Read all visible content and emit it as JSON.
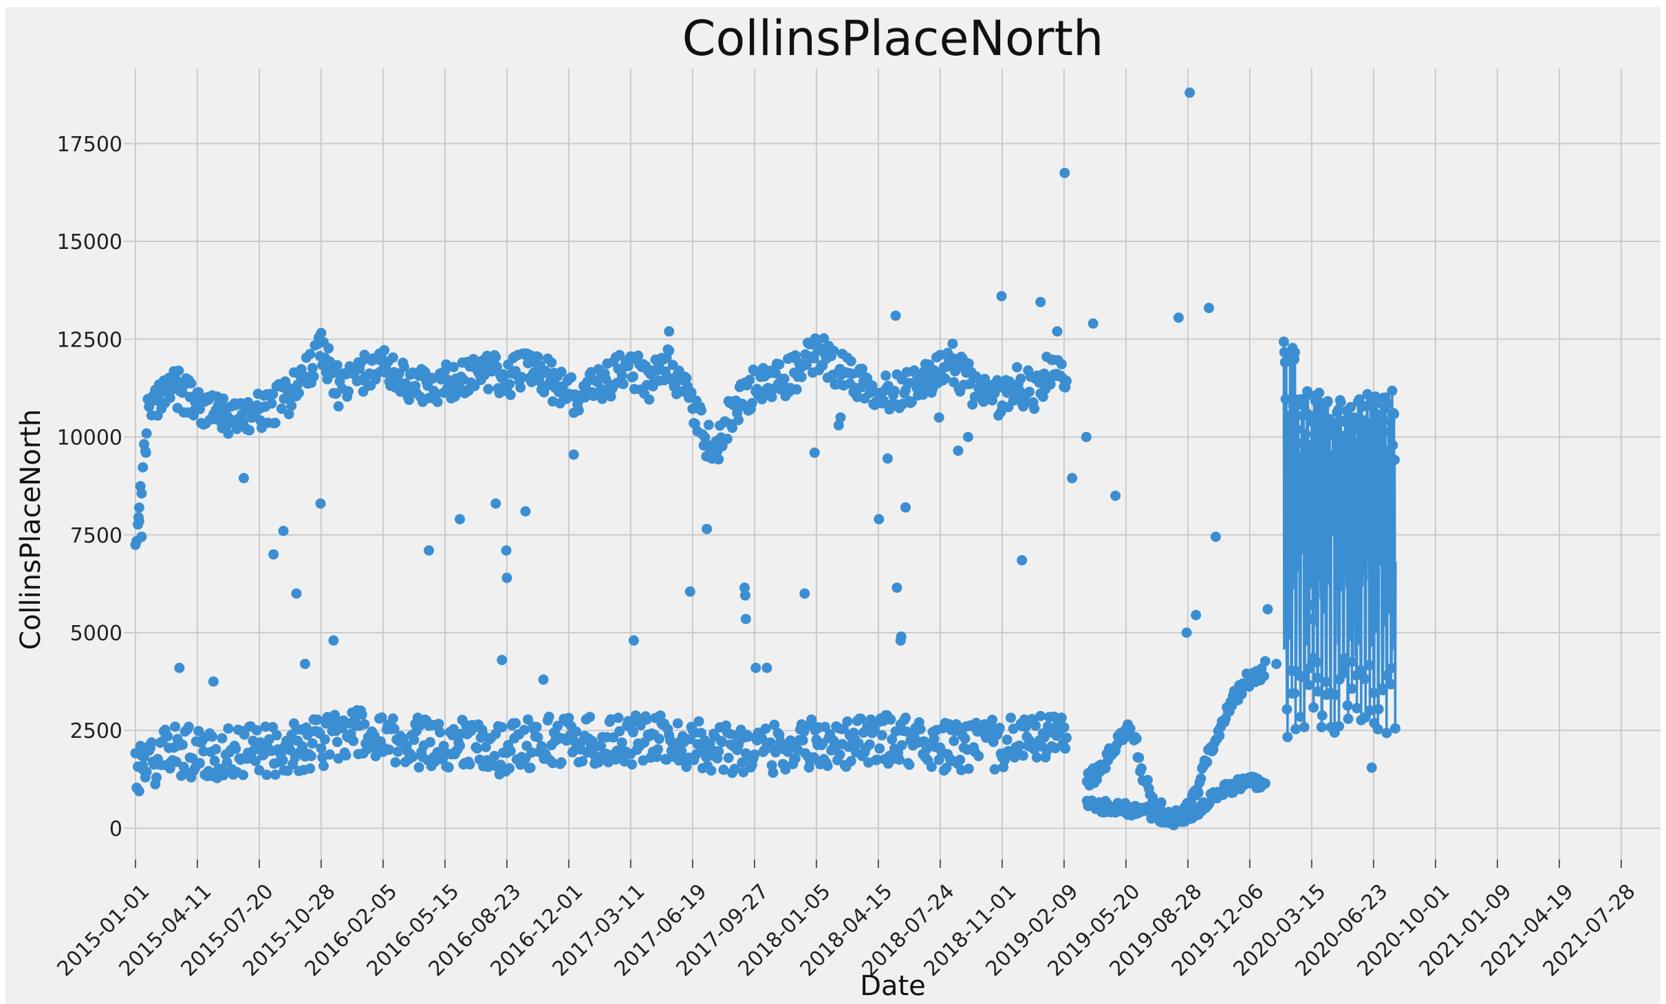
{
  "chart_data": {
    "type": "scatter",
    "title": "CollinsPlaceNorth",
    "xlabel": "Date",
    "ylabel": "CollinsPlaceNorth",
    "xlim": [
      "2014-11-21",
      "2021-09-25"
    ],
    "ylim": [
      -800,
      19500
    ],
    "grid": true,
    "background": "#f0f0f0",
    "marker_color": "#3b8ed2",
    "x_ticks": [
      "2015-01-01",
      "2015-04-11",
      "2015-07-20",
      "2015-10-28",
      "2016-02-05",
      "2016-05-15",
      "2016-08-23",
      "2016-12-01",
      "2017-03-11",
      "2017-06-19",
      "2017-09-27",
      "2018-01-05",
      "2018-04-15",
      "2018-07-24",
      "2018-11-01",
      "2019-02-09",
      "2019-05-20",
      "2019-08-28",
      "2019-12-06",
      "2020-03-15",
      "2020-06-23",
      "2020-10-01",
      "2021-01-09",
      "2021-04-19",
      "2021-07-28"
    ],
    "y_ticks": [
      0,
      2500,
      5000,
      7500,
      10000,
      12500,
      15000,
      17500
    ],
    "x_start": "2015-01-01",
    "segments": [
      {
        "name": "weekday",
        "points": [
          [
            0,
            7500
          ],
          [
            20,
            10500
          ],
          [
            60,
            11300
          ],
          [
            90,
            11000
          ],
          [
            120,
            10600
          ],
          [
            170,
            10500
          ],
          [
            220,
            10800
          ],
          [
            260,
            11200
          ],
          [
            300,
            12300
          ],
          [
            330,
            11200
          ],
          [
            365,
            11600
          ],
          [
            400,
            11800
          ],
          [
            440,
            11400
          ],
          [
            480,
            11300
          ],
          [
            520,
            11500
          ],
          [
            560,
            11700
          ],
          [
            600,
            11500
          ],
          [
            640,
            11900
          ],
          [
            680,
            11300
          ],
          [
            720,
            11000
          ],
          [
            760,
            11400
          ],
          [
            800,
            11800
          ],
          [
            830,
            11300
          ],
          [
            860,
            12000
          ],
          [
            890,
            11100
          ],
          [
            920,
            10000
          ],
          [
            940,
            9600
          ],
          [
            960,
            10600
          ],
          [
            1000,
            11300
          ],
          [
            1040,
            11400
          ],
          [
            1080,
            11800
          ],
          [
            1100,
            12200
          ],
          [
            1140,
            11700
          ],
          [
            1180,
            11400
          ],
          [
            1220,
            11100
          ],
          [
            1260,
            11400
          ],
          [
            1300,
            11600
          ],
          [
            1320,
            11900
          ],
          [
            1340,
            11500
          ],
          [
            1380,
            10900
          ],
          [
            1420,
            11300
          ],
          [
            1460,
            11200
          ],
          [
            1470,
            11600
          ],
          [
            1505,
            11400
          ]
        ],
        "spread": 500
      },
      {
        "name": "weekend",
        "points": [
          [
            0,
            1500
          ],
          [
            60,
            2000
          ],
          [
            120,
            1900
          ],
          [
            180,
            2000
          ],
          [
            240,
            2000
          ],
          [
            300,
            2200
          ],
          [
            340,
            2500
          ],
          [
            400,
            2200
          ],
          [
            460,
            2200
          ],
          [
            520,
            2200
          ],
          [
            580,
            2000
          ],
          [
            640,
            2200
          ],
          [
            700,
            2300
          ],
          [
            760,
            2200
          ],
          [
            820,
            2300
          ],
          [
            880,
            2200
          ],
          [
            940,
            2100
          ],
          [
            1000,
            2000
          ],
          [
            1060,
            2100
          ],
          [
            1120,
            2200
          ],
          [
            1180,
            2200
          ],
          [
            1240,
            2300
          ],
          [
            1300,
            2100
          ],
          [
            1360,
            2100
          ],
          [
            1420,
            2200
          ],
          [
            1480,
            2400
          ],
          [
            1505,
            2300
          ]
        ],
        "spread": 650
      },
      {
        "name": "covid-weekday",
        "points": [
          [
            1537,
            1200
          ],
          [
            1560,
            1500
          ],
          [
            1580,
            2000
          ],
          [
            1600,
            2500
          ],
          [
            1615,
            2300
          ],
          [
            1625,
            1500
          ],
          [
            1645,
            600
          ],
          [
            1660,
            400
          ],
          [
            1670,
            300
          ],
          [
            1680,
            250
          ],
          [
            1700,
            450
          ],
          [
            1720,
            1200
          ],
          [
            1740,
            2200
          ],
          [
            1755,
            2600
          ],
          [
            1770,
            3200
          ],
          [
            1790,
            3700
          ],
          [
            1800,
            3800
          ],
          [
            1810,
            3900
          ],
          [
            1825,
            4100
          ]
        ],
        "spread": 220
      },
      {
        "name": "covid-weekend",
        "points": [
          [
            1537,
            650
          ],
          [
            1560,
            550
          ],
          [
            1580,
            550
          ],
          [
            1600,
            500
          ],
          [
            1620,
            450
          ],
          [
            1640,
            380
          ],
          [
            1660,
            250
          ],
          [
            1680,
            200
          ],
          [
            1700,
            300
          ],
          [
            1720,
            500
          ],
          [
            1740,
            800
          ],
          [
            1760,
            1000
          ],
          [
            1780,
            1100
          ],
          [
            1800,
            1200
          ],
          [
            1825,
            1050
          ]
        ],
        "spread": 150
      }
    ],
    "outliers": [
      [
        1703,
        18800
      ],
      [
        1501,
        16750
      ],
      [
        1399,
        13600
      ],
      [
        1462,
        13450
      ],
      [
        1734,
        13300
      ],
      [
        1547,
        12900
      ],
      [
        1685,
        13050
      ],
      [
        1228,
        13100
      ],
      [
        862,
        12700
      ],
      [
        805,
        4800
      ],
      [
        1081,
        6000
      ],
      [
        1230,
        6150
      ],
      [
        1432,
        6850
      ],
      [
        1513,
        8950
      ],
      [
        1698,
        5000
      ],
      [
        1713,
        5450
      ],
      [
        1745,
        7450
      ],
      [
        1829,
        5600
      ],
      [
        1843,
        4200
      ],
      [
        1872,
        3450
      ],
      [
        1898,
        8200
      ],
      [
        1899,
        5700
      ],
      [
        1900,
        5350
      ],
      [
        1901,
        4250
      ],
      [
        1902,
        6550
      ],
      [
        1890,
        8950
      ],
      [
        1908,
        4250
      ],
      [
        1953,
        4350
      ],
      [
        1997,
        1550
      ],
      [
        12,
        1600
      ],
      [
        10,
        7450
      ],
      [
        6,
        7850
      ],
      [
        5,
        7950
      ],
      [
        17,
        9600
      ],
      [
        71,
        4100
      ],
      [
        126,
        3750
      ],
      [
        175,
        8950
      ],
      [
        223,
        7000
      ],
      [
        239,
        7600
      ],
      [
        260,
        6000
      ],
      [
        274,
        4200
      ],
      [
        299,
        8300
      ],
      [
        320,
        4800
      ],
      [
        474,
        7100
      ],
      [
        524,
        7900
      ],
      [
        582,
        8300
      ],
      [
        592,
        4300
      ],
      [
        599,
        7100
      ],
      [
        600,
        6400
      ],
      [
        630,
        8100
      ],
      [
        659,
        3800
      ],
      [
        708,
        9550
      ],
      [
        896,
        6050
      ],
      [
        923,
        7650
      ],
      [
        984,
        6150
      ],
      [
        985,
        5950
      ],
      [
        986,
        5350
      ],
      [
        1002,
        4100
      ],
      [
        1020,
        4100
      ],
      [
        1097,
        9600
      ],
      [
        1136,
        10300
      ],
      [
        1139,
        10500
      ],
      [
        1201,
        7900
      ],
      [
        1215,
        9450
      ],
      [
        1236,
        4800
      ],
      [
        1237,
        4900
      ],
      [
        1244,
        8200
      ],
      [
        1298,
        10500
      ],
      [
        1329,
        9650
      ],
      [
        1345,
        10000
      ],
      [
        1426,
        11050
      ],
      [
        1489,
        12700
      ],
      [
        1536,
        10000
      ],
      [
        1583,
        8500
      ]
    ],
    "dense_block": {
      "start": 1855,
      "end": 2035,
      "step": 1,
      "weekday_range": [
        9300,
        11200
      ],
      "weekday_peak": [
        11900,
        12450
      ],
      "weekend_range": [
        2300,
        4400
      ]
    }
  }
}
